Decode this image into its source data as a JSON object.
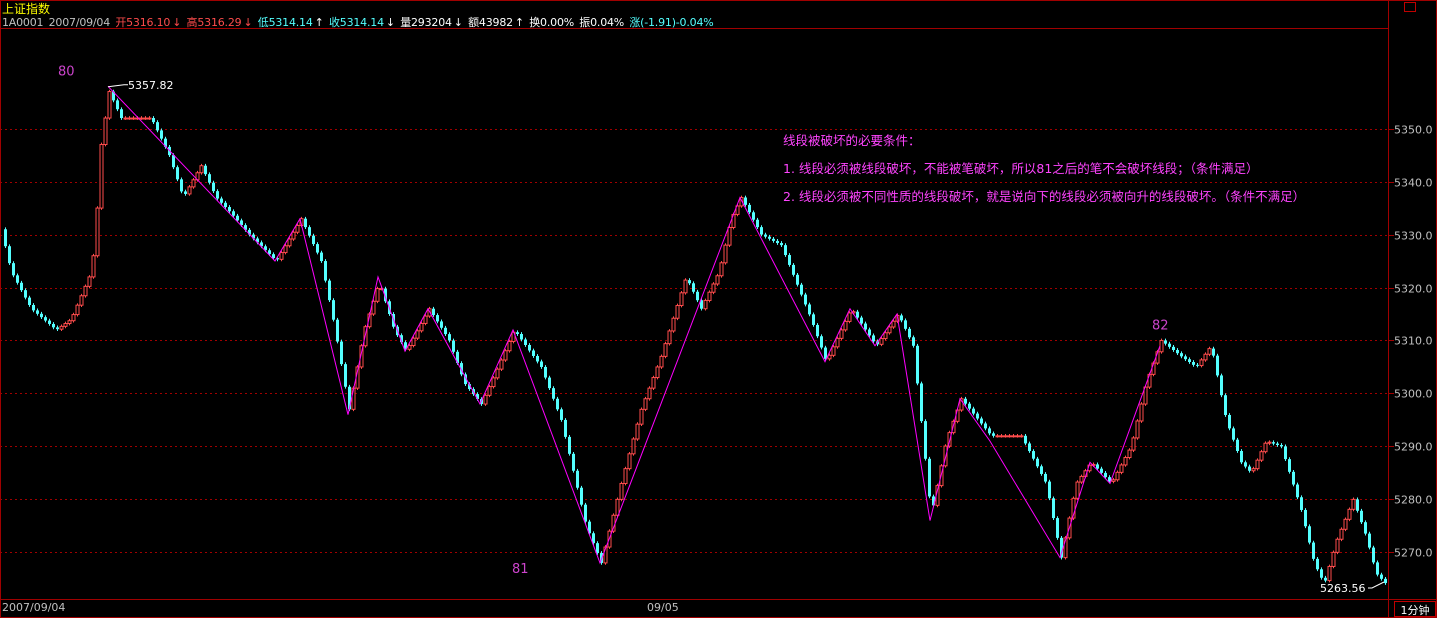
{
  "header": {
    "title": "上证指数",
    "code": "1A0001",
    "date": "2007/09/04",
    "open": "开5316.10",
    "high": "高5316.29",
    "low": "低5314.14",
    "close": "收5314.14",
    "volume": "量293204",
    "amount": "额43982",
    "turnover": "换0.00%",
    "amplitude": "振0.04%",
    "change": "涨(-1.91)-0.04%"
  },
  "footer": {
    "date_left": "2007/09/04",
    "date_mid": "09/05",
    "period": "1分钟"
  },
  "notes": {
    "title": "线段被破坏的必要条件：",
    "line1": "1. 线段必须被线段破坏，不能被笔破坏，所以81之后的笔不会破坏线段；（条件满足）",
    "line2": "2. 线段必须被不同性质的线段破坏，就是说向下的线段必须被向升的线段破坏。（条件不满足）"
  },
  "colors": {
    "up": "#ff4c4c",
    "down": "#54ffff",
    "zigzag": "#ff00ff",
    "grid": "#a00000",
    "axis_text": "#c0c0c0",
    "annotation": "#cc44cc"
  },
  "chart_data": {
    "type": "candlestick",
    "y_ticks": [
      5270,
      5280,
      5290,
      5300,
      5310,
      5320,
      5330,
      5340,
      5350
    ],
    "y_tick_labels": [
      "5270.0",
      "5280.0",
      "5290.0",
      "5300.0",
      "5310.0",
      "5320.0",
      "5330.0",
      "5340.0",
      "5350.0"
    ],
    "ylim": [
      5261,
      5369
    ],
    "x_range": [
      0,
      1388
    ],
    "max_label": "5357.82",
    "min_label": "5263.56",
    "zigzag": [
      [
        108,
        5358
      ],
      [
        275,
        5325
      ],
      [
        300,
        5333
      ],
      [
        348,
        5296
      ],
      [
        378,
        5322
      ],
      [
        405,
        5308
      ],
      [
        428,
        5316
      ],
      [
        480,
        5298
      ],
      [
        513,
        5312
      ],
      [
        600,
        5268
      ],
      [
        740,
        5337
      ],
      [
        825,
        5306
      ],
      [
        850,
        5316
      ],
      [
        875,
        5309
      ],
      [
        897,
        5315
      ],
      [
        930,
        5276
      ],
      [
        960,
        5299
      ],
      [
        990,
        5291
      ],
      [
        1060,
        5269
      ],
      [
        1090,
        5287
      ],
      [
        1110,
        5283
      ],
      [
        1160,
        5309
      ]
    ],
    "labels": [
      {
        "text": "80",
        "x": 65,
        "y": 5361
      },
      {
        "text": "81",
        "x": 519,
        "y": 5267
      },
      {
        "text": "82",
        "x": 1159,
        "y": 5313
      }
    ],
    "candles": {
      "step": 4,
      "path": [
        [
          0,
          5331
        ],
        [
          10,
          5323
        ],
        [
          30,
          5316
        ],
        [
          55,
          5312
        ],
        [
          70,
          5314
        ],
        [
          88,
          5322
        ],
        [
          93,
          5327
        ],
        [
          96,
          5335
        ],
        [
          100,
          5347
        ],
        [
          108,
          5357
        ],
        [
          120,
          5352
        ],
        [
          135,
          5352
        ],
        [
          150,
          5352
        ],
        [
          168,
          5345
        ],
        [
          182,
          5337
        ],
        [
          200,
          5343
        ],
        [
          215,
          5337
        ],
        [
          230,
          5334
        ],
        [
          248,
          5330
        ],
        [
          275,
          5325
        ],
        [
          300,
          5333
        ],
        [
          320,
          5325
        ],
        [
          333,
          5313
        ],
        [
          348,
          5297
        ],
        [
          363,
          5312
        ],
        [
          378,
          5321
        ],
        [
          393,
          5312
        ],
        [
          405,
          5308
        ],
        [
          428,
          5316
        ],
        [
          448,
          5310
        ],
        [
          463,
          5302
        ],
        [
          480,
          5298
        ],
        [
          497,
          5305
        ],
        [
          513,
          5312
        ],
        [
          540,
          5305
        ],
        [
          560,
          5295
        ],
        [
          585,
          5275
        ],
        [
          600,
          5268
        ],
        [
          620,
          5283
        ],
        [
          640,
          5297
        ],
        [
          660,
          5307
        ],
        [
          685,
          5322
        ],
        [
          700,
          5316
        ],
        [
          718,
          5323
        ],
        [
          730,
          5333
        ],
        [
          740,
          5337
        ],
        [
          760,
          5330
        ],
        [
          780,
          5328
        ],
        [
          795,
          5321
        ],
        [
          810,
          5314
        ],
        [
          825,
          5306
        ],
        [
          850,
          5316
        ],
        [
          875,
          5309
        ],
        [
          897,
          5315
        ],
        [
          912,
          5309
        ],
        [
          930,
          5277
        ],
        [
          945,
          5291
        ],
        [
          960,
          5299
        ],
        [
          990,
          5292
        ],
        [
          1020,
          5292
        ],
        [
          1045,
          5283
        ],
        [
          1060,
          5269
        ],
        [
          1075,
          5283
        ],
        [
          1090,
          5287
        ],
        [
          1110,
          5283
        ],
        [
          1130,
          5290
        ],
        [
          1145,
          5302
        ],
        [
          1160,
          5310
        ],
        [
          1180,
          5307
        ],
        [
          1195,
          5305
        ],
        [
          1210,
          5309
        ],
        [
          1225,
          5295
        ],
        [
          1240,
          5287
        ],
        [
          1250,
          5285
        ],
        [
          1265,
          5291
        ],
        [
          1280,
          5290
        ],
        [
          1300,
          5278
        ],
        [
          1313,
          5268
        ],
        [
          1323,
          5264
        ],
        [
          1335,
          5272
        ],
        [
          1352,
          5280
        ],
        [
          1365,
          5273
        ],
        [
          1375,
          5266
        ],
        [
          1385,
          5264
        ]
      ]
    }
  }
}
